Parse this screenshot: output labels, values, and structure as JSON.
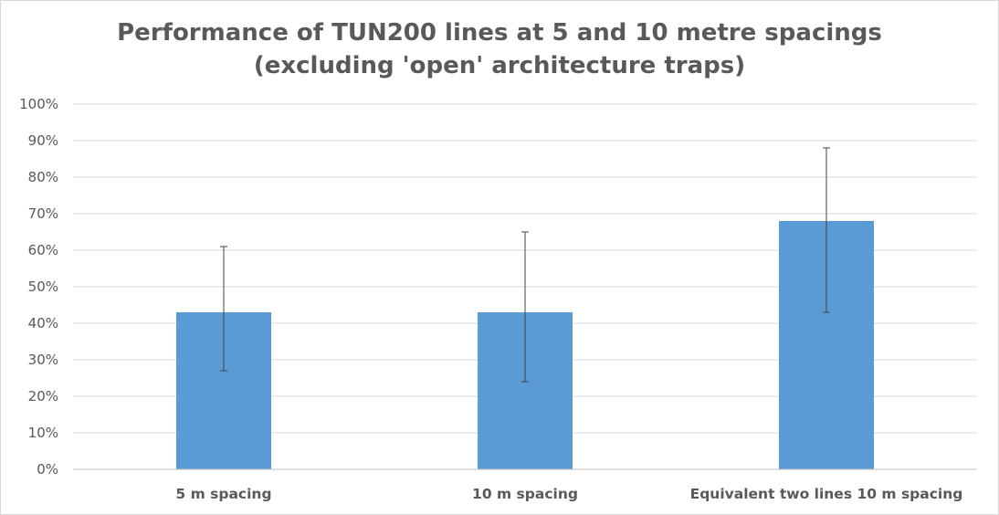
{
  "chart_data": {
    "type": "bar",
    "title": "Performance of TUN200 lines at 5 and 10 metre spacings",
    "subtitle": "(excluding 'open' architecture traps)",
    "categories": [
      "5 m spacing",
      "10 m spacing",
      "Equivalent two lines 10 m spacing"
    ],
    "values": [
      43,
      43,
      68
    ],
    "error_bars": [
      {
        "low": 27,
        "high": 61
      },
      {
        "low": 24,
        "high": 65
      },
      {
        "low": 43,
        "high": 88
      }
    ],
    "ylim": [
      0,
      100
    ],
    "yticks": [
      0,
      10,
      20,
      30,
      40,
      50,
      60,
      70,
      80,
      90,
      100
    ],
    "ytick_labels": [
      "0%",
      "10%",
      "20%",
      "30%",
      "40%",
      "50%",
      "60%",
      "70%",
      "80%",
      "90%",
      "100%"
    ],
    "xlabel": "",
    "ylabel": "",
    "grid": true,
    "legend": "none",
    "colors": {
      "bar": "#5b9bd5",
      "grid": "#d9d9d9",
      "axis": "#bfbfbf",
      "text": "#595959",
      "error_bar": "#404040"
    }
  }
}
